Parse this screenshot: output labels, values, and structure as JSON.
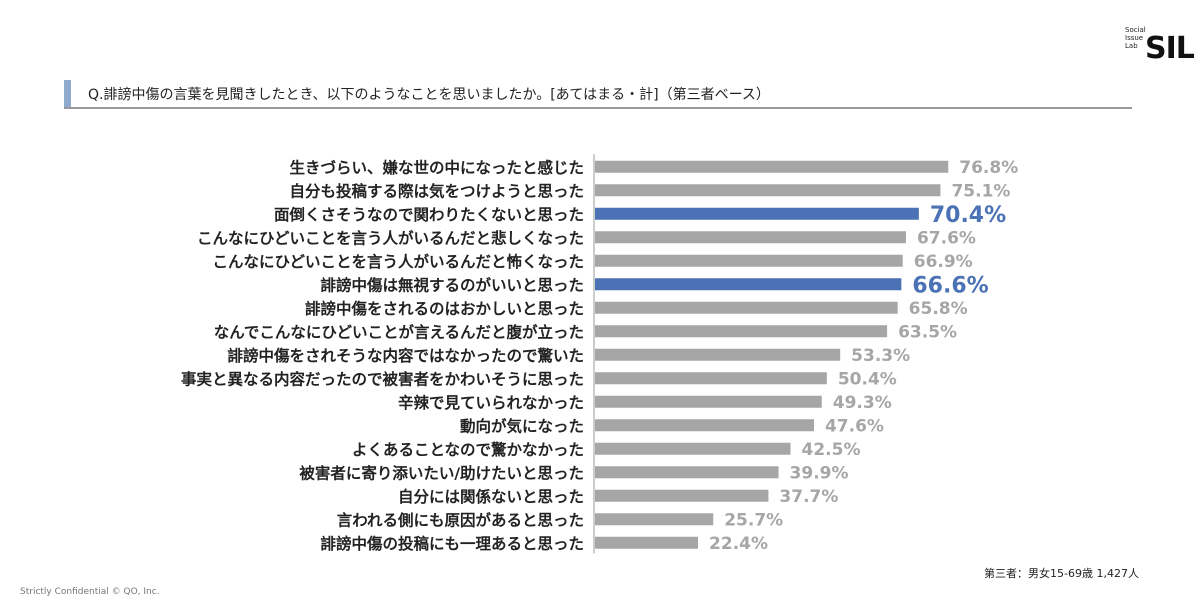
{
  "logo": {
    "line1": "Social",
    "line2": "Issue",
    "line3": "Lab",
    "mark": "SIL"
  },
  "question": "Q.誹謗中傷の言葉を見聞きしたとき、以下のようなことを思いましたか。[あてはまる・計]（第三者ベース）",
  "base_note": "第三者：男女15-69歳 1,427人",
  "footer": "Strictly Confidential  © QO, Inc.",
  "colors": {
    "bar_default": "#a6a6a6",
    "bar_highlight": "#4a72b4",
    "value_default": "#a6a6a6",
    "value_highlight": "#4a72b4",
    "accent": "#8fa9cf"
  },
  "chart_data": {
    "type": "bar",
    "orientation": "horizontal",
    "unit": "%",
    "categories": [
      "生きづらい、嫌な世の中になったと感じた",
      "自分も投稿する際は気をつけようと思った",
      "面倒くさそうなので関わりたくないと思った",
      "こんなにひどいことを言う人がいるんだと悲しくなった",
      "こんなにひどいことを言う人がいるんだと怖くなった",
      "誹謗中傷は無視するのがいいと思った",
      "誹謗中傷をされるのはおかしいと思った",
      "なんでこんなにひどいことが言えるんだと腹が立った",
      "誹謗中傷をされそうな内容ではなかったので驚いた",
      "事実と異なる内容だったので被害者をかわいそうに思った",
      "辛辣で見ていられなかった",
      "動向が気になった",
      "よくあることなので驚かなかった",
      "被害者に寄り添いたい/助けたいと思った",
      "自分には関係ないと思った",
      "言われる側にも原因があると思った",
      "誹謗中傷の投稿にも一理あると思った"
    ],
    "values": [
      76.8,
      75.1,
      70.4,
      67.6,
      66.9,
      66.6,
      65.8,
      63.5,
      53.3,
      50.4,
      49.3,
      47.6,
      42.5,
      39.9,
      37.7,
      25.7,
      22.4
    ],
    "value_labels": [
      "76.8%",
      "75.1%",
      "70.4%",
      "67.6%",
      "66.9%",
      "66.6%",
      "65.8%",
      "63.5%",
      "53.3%",
      "50.4%",
      "49.3%",
      "47.6%",
      "42.5%",
      "39.9%",
      "37.7%",
      "25.7%",
      "22.4%"
    ],
    "highlighted": [
      "面倒くさそうなので関わりたくないと思った",
      "誹謗中傷は無視するのがいいと思った"
    ],
    "xlim": [
      0,
      100
    ],
    "grid": false,
    "legend": "none"
  }
}
